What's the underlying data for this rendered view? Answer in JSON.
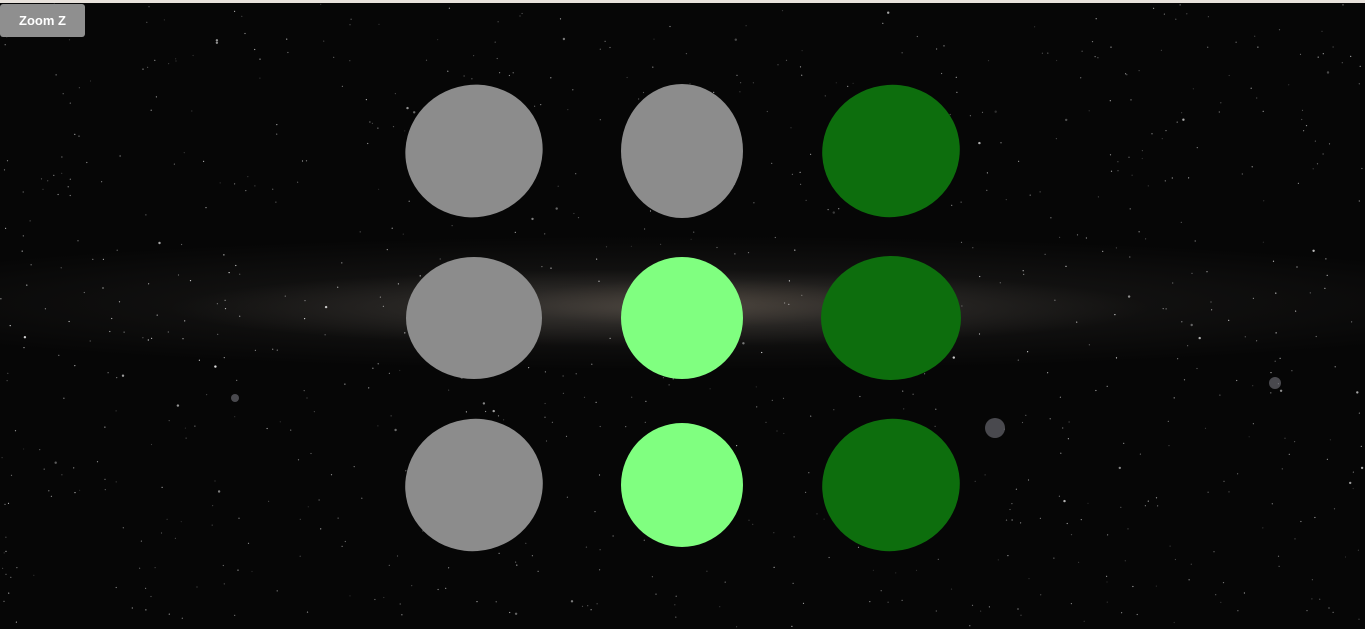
{
  "toolbar": {
    "zoom_label": "Zoom Z"
  },
  "scene": {
    "background": "milky-way-panorama",
    "sphere_grid": {
      "rows": 3,
      "columns": 3,
      "colors": {
        "base_gray": "#8c8c8c",
        "light_green": "#80ff80",
        "dark_green": "#0d6e0d",
        "dot_green": "#0a5a0a"
      },
      "spheres": [
        {
          "row": 1,
          "col": 1,
          "style": "gray-with-line-mesh",
          "density": 0.25
        },
        {
          "row": 1,
          "col": 2,
          "style": "gray-with-line-mesh",
          "density": 0.35
        },
        {
          "row": 1,
          "col": 3,
          "style": "dark-green-dotted",
          "density": 0.55
        },
        {
          "row": 2,
          "col": 1,
          "style": "gray-with-line-mesh",
          "density": 0.8
        },
        {
          "row": 2,
          "col": 2,
          "style": "light-green-dotted",
          "density": 0.45
        },
        {
          "row": 2,
          "col": 3,
          "style": "dark-green-dotted",
          "density": 0.65
        },
        {
          "row": 3,
          "col": 1,
          "style": "light-green-sparse-lines",
          "density": 0.95
        },
        {
          "row": 3,
          "col": 2,
          "style": "light-green-dotted",
          "density": 0.5
        },
        {
          "row": 3,
          "col": 3,
          "style": "dark-green-dotted",
          "density": 0.6
        }
      ]
    }
  }
}
